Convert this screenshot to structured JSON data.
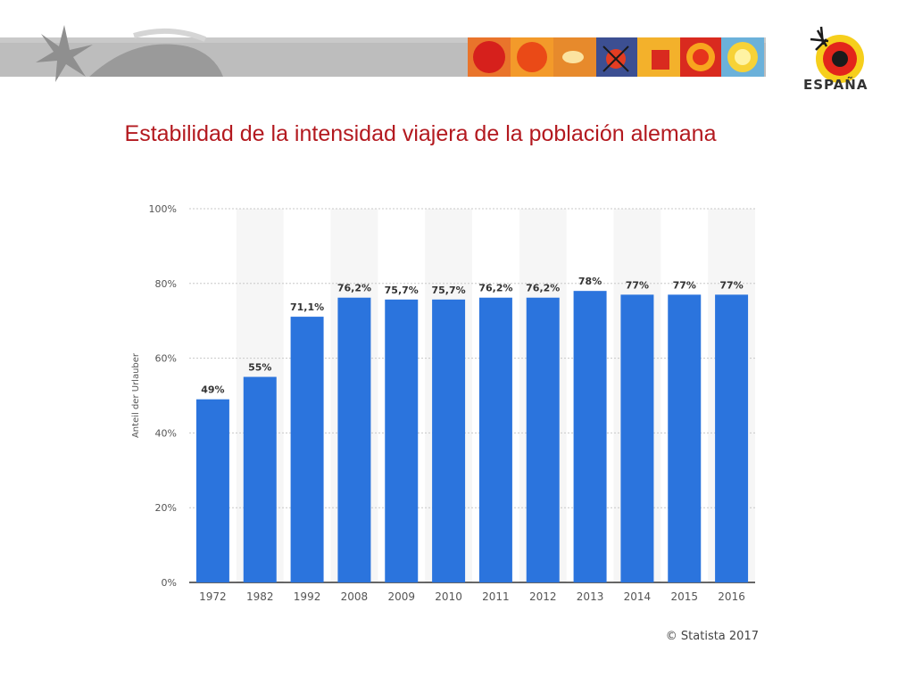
{
  "slide": {
    "title": "Estabilidad de la intensidad viajera de la población alemana",
    "logo_text": "ESPAÑA",
    "copyright": "© Statista 2017"
  },
  "colors": {
    "title": "#b3191f",
    "bar": "#2b74dd",
    "banner_gray": "#b9b9b9"
  },
  "chart_data": {
    "type": "bar",
    "title": "",
    "xlabel": "",
    "ylabel": "Anteil der Urlauber",
    "categories": [
      "1972",
      "1982",
      "1992",
      "2008",
      "2009",
      "2010",
      "2011",
      "2012",
      "2013",
      "2014",
      "2015",
      "2016"
    ],
    "values": [
      49,
      55,
      71.1,
      76.2,
      75.7,
      75.7,
      76.2,
      76.2,
      78,
      77,
      77,
      77
    ],
    "value_labels": [
      "49%",
      "55%",
      "71,1%",
      "76,2%",
      "75,7%",
      "75,7%",
      "76,2%",
      "76,2%",
      "78%",
      "77%",
      "77%",
      "77%"
    ],
    "ylim": [
      0,
      100
    ],
    "yticks": [
      0,
      20,
      40,
      60,
      80,
      100
    ],
    "ytick_labels": [
      "0%",
      "20%",
      "40%",
      "60%",
      "80%",
      "100%"
    ],
    "grid": true,
    "legend": "none"
  }
}
